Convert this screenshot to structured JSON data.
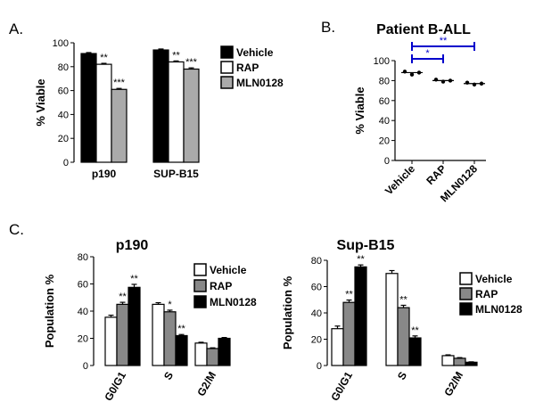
{
  "panel_labels": {
    "a": "A.",
    "b": "B.",
    "c": "C."
  },
  "colors": {
    "vehicle": "#000000",
    "rap": "#ffffff",
    "mln": "#aaaaaa",
    "rap_c": "#888888",
    "mln_c": "#000000",
    "bracket": "#0000cc"
  },
  "chart_data": [
    {
      "id": "A",
      "type": "bar",
      "title": "",
      "ylabel": "% Viable",
      "ylim": [
        0,
        100
      ],
      "yticks": [
        0,
        20,
        40,
        60,
        80,
        100
      ],
      "categories": [
        "p190",
        "SUP-B15"
      ],
      "series": [
        {
          "name": "Vehicle",
          "values": [
            91,
            94
          ],
          "errors": [
            0.8,
            0.8
          ],
          "stars": [
            "",
            ""
          ],
          "color": "#000000"
        },
        {
          "name": "RAP",
          "values": [
            82,
            84
          ],
          "errors": [
            0.8,
            0.8
          ],
          "stars": [
            "**",
            "**"
          ],
          "color": "#ffffff"
        },
        {
          "name": "MLN0128",
          "values": [
            61,
            78
          ],
          "errors": [
            0.8,
            1.0
          ],
          "stars": [
            "***",
            "***"
          ],
          "color": "#aaaaaa"
        }
      ],
      "legend_position": "right"
    },
    {
      "id": "B",
      "type": "scatter",
      "title": "Patient B-ALL",
      "ylabel": "% Viable",
      "ylim": [
        0,
        100
      ],
      "yticks": [
        0,
        20,
        40,
        60,
        80,
        100
      ],
      "categories": [
        "Vehicle",
        "RAP",
        "MLN0128"
      ],
      "points": [
        [
          89,
          86,
          88
        ],
        [
          81,
          79,
          80
        ],
        [
          78,
          76,
          77
        ]
      ],
      "means": [
        88,
        80,
        77
      ],
      "brackets": [
        {
          "from": "Vehicle",
          "to": "RAP",
          "label": "*"
        },
        {
          "from": "Vehicle",
          "to": "MLN0128",
          "label": "**"
        }
      ]
    },
    {
      "id": "C1",
      "type": "bar",
      "title": "p190",
      "ylabel": "Population %",
      "ylim": [
        0,
        80
      ],
      "yticks": [
        0,
        20,
        40,
        60,
        80
      ],
      "categories": [
        "G0/G1",
        "S",
        "G2/M"
      ],
      "series": [
        {
          "name": "Vehicle",
          "values": [
            35.5,
            45,
            16.5
          ],
          "errors": [
            1.5,
            1.2,
            0.6
          ],
          "stars": [
            "",
            "",
            ""
          ],
          "color": "#ffffff"
        },
        {
          "name": "RAP",
          "values": [
            45,
            39.5,
            12.5
          ],
          "errors": [
            1.5,
            1.2,
            0.5
          ],
          "stars": [
            "**",
            "*",
            ""
          ],
          "color": "#888888"
        },
        {
          "name": "MLN0128",
          "values": [
            57.5,
            22,
            20
          ],
          "errors": [
            2.2,
            0.8,
            0.6
          ],
          "stars": [
            "**",
            "**",
            ""
          ],
          "color": "#000000"
        }
      ],
      "legend_position": "top-right"
    },
    {
      "id": "C2",
      "type": "bar",
      "title": "Sup-B15",
      "ylabel": "Population %",
      "ylim": [
        0,
        80
      ],
      "yticks": [
        0,
        20,
        40,
        60,
        80
      ],
      "categories": [
        "G0/G1",
        "S",
        "G2/M"
      ],
      "series": [
        {
          "name": "Vehicle",
          "values": [
            28,
            70,
            7.5
          ],
          "errors": [
            2.0,
            2.2,
            0.6
          ],
          "stars": [
            "",
            "",
            ""
          ],
          "color": "#ffffff"
        },
        {
          "name": "RAP",
          "values": [
            48,
            44,
            5.5
          ],
          "errors": [
            1.8,
            1.8,
            0.5
          ],
          "stars": [
            "**",
            "**",
            ""
          ],
          "color": "#888888"
        },
        {
          "name": "MLN0128",
          "values": [
            75,
            21,
            2.5
          ],
          "errors": [
            1.5,
            1.5,
            0.3
          ],
          "stars": [
            "**",
            "**",
            ""
          ],
          "color": "#000000"
        }
      ],
      "legend_position": "right"
    }
  ]
}
